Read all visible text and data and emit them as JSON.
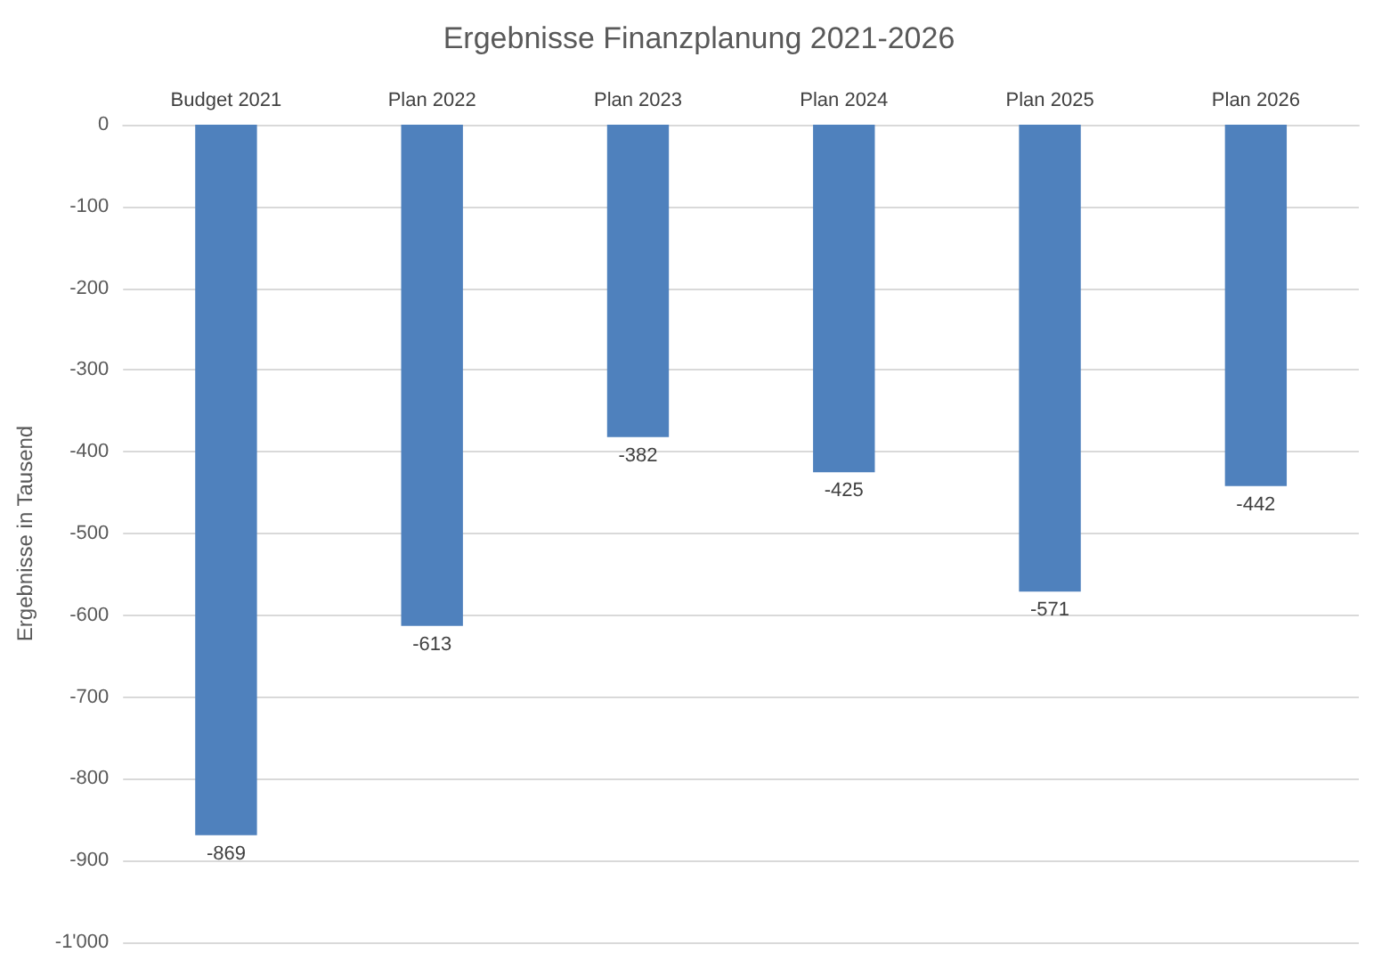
{
  "chart_data": {
    "type": "bar",
    "title": "Ergebnisse Finanzplanung 2021-2026",
    "ylabel": "Ergebnisse in Tausend",
    "categories": [
      "Budget 2021",
      "Plan 2022",
      "Plan 2023",
      "Plan 2024",
      "Plan 2025",
      "Plan 2026"
    ],
    "values": [
      -869,
      -613,
      -382,
      -425,
      -571,
      -442
    ],
    "color": "#4f81bd",
    "ylim": [
      -1000,
      0
    ],
    "yticks": [
      0,
      -100,
      -200,
      -300,
      -400,
      -500,
      -600,
      -700,
      -800,
      -900,
      {
        "value": -1000,
        "label": "-1'000"
      }
    ],
    "grid": "y",
    "data_labels": true
  }
}
